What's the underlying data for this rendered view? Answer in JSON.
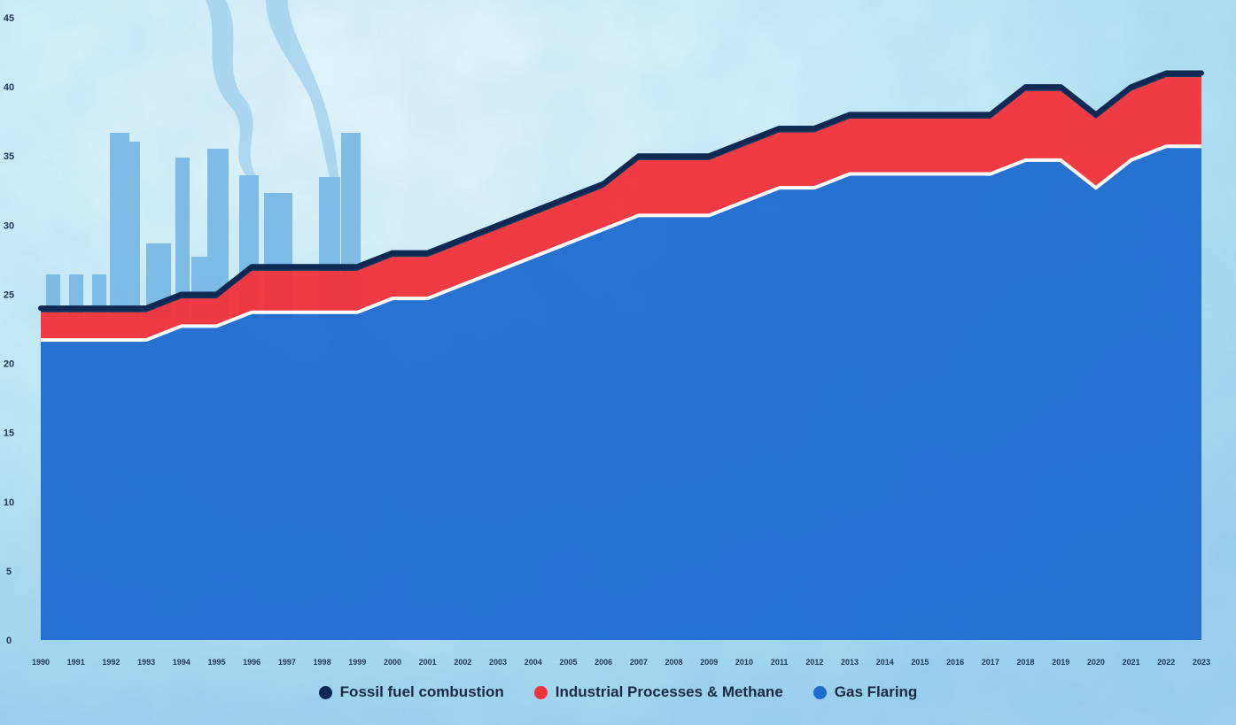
{
  "chart_data": {
    "type": "area",
    "stacked": true,
    "x": [
      "1990",
      "1991",
      "1992",
      "1993",
      "1994",
      "1995",
      "1996",
      "1997",
      "1998",
      "1999",
      "2000",
      "2001",
      "2002",
      "2003",
      "2004",
      "2005",
      "2006",
      "2007",
      "2008",
      "2009",
      "2010",
      "2011",
      "2012",
      "2013",
      "2014",
      "2015",
      "2016",
      "2017",
      "2018",
      "2019",
      "2020",
      "2021",
      "2022",
      "2023"
    ],
    "series": [
      {
        "name": "Gas Flaring",
        "color": "#1f6ccf",
        "values": [
          21.7,
          21.7,
          21.7,
          21.7,
          22.7,
          22.7,
          23.7,
          23.7,
          23.7,
          23.7,
          24.7,
          24.7,
          25.7,
          26.7,
          27.7,
          28.7,
          29.7,
          30.7,
          30.7,
          30.7,
          31.7,
          32.7,
          32.7,
          33.7,
          33.7,
          33.7,
          33.7,
          33.7,
          34.7,
          34.7,
          32.7,
          34.7,
          35.7,
          35.7
        ]
      },
      {
        "name": "Industrial Processes & Methane",
        "color": "#f2323a",
        "values": [
          2.0,
          2.0,
          2.0,
          2.0,
          2.0,
          2.0,
          3.0,
          3.0,
          3.0,
          3.0,
          3.0,
          3.0,
          3.0,
          3.0,
          3.0,
          3.0,
          3.0,
          4.0,
          4.0,
          4.0,
          4.0,
          4.0,
          4.0,
          4.0,
          4.0,
          4.0,
          4.0,
          4.0,
          5.0,
          5.0,
          5.0,
          5.0,
          5.0,
          5.0
        ]
      },
      {
        "name": "Fossil fuel combustion",
        "color": "#0e2a52",
        "values": [
          0.3,
          0.3,
          0.3,
          0.3,
          0.3,
          0.3,
          0.3,
          0.3,
          0.3,
          0.3,
          0.3,
          0.3,
          0.3,
          0.3,
          0.3,
          0.3,
          0.3,
          0.3,
          0.3,
          0.3,
          0.3,
          0.3,
          0.3,
          0.3,
          0.3,
          0.3,
          0.3,
          0.3,
          0.3,
          0.3,
          0.3,
          0.3,
          0.3,
          0.3
        ]
      }
    ],
    "ylim": [
      0,
      45
    ],
    "yticks": [
      "0",
      "5",
      "10",
      "15",
      "20",
      "25",
      "30",
      "35",
      "40",
      "45"
    ],
    "grid": false,
    "legend_position": "bottom",
    "title": "",
    "xlabel": "",
    "ylabel": ""
  },
  "legend": {
    "items": [
      {
        "label": "Fossil fuel combustion",
        "color": "#0e2a52"
      },
      {
        "label": "Industrial Processes & Methane",
        "color": "#f2323a"
      },
      {
        "label": "Gas Flaring",
        "color": "#1f6ccf"
      }
    ]
  },
  "background": {
    "sky_color": "#bfe8f5",
    "factory_color": "#6fb3e3"
  }
}
